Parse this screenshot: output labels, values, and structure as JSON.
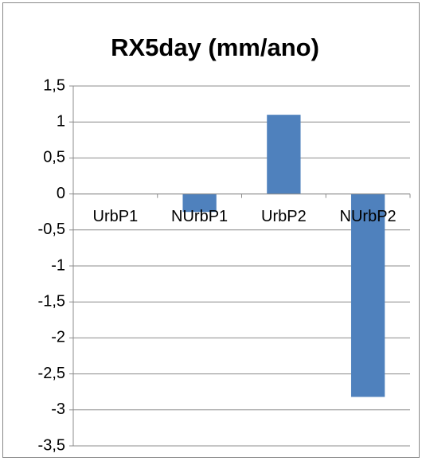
{
  "chart_data": {
    "type": "bar",
    "title": "RX5day (mm/ano)",
    "categories": [
      "UrbP1",
      "NUrbP1",
      "UrbP2",
      "NUrbP2"
    ],
    "values": [
      0,
      -0.25,
      1.1,
      -2.82
    ],
    "color": "#4f81bd",
    "ylim": [
      -3.5,
      1.5
    ],
    "yticks": [
      {
        "value": -3.5,
        "label": "-3,5"
      },
      -3,
      {
        "value": -2.5,
        "label": "-2,5"
      },
      -2,
      {
        "value": -1.5,
        "label": "-1,5"
      },
      -1,
      {
        "value": -0.5,
        "label": "-0,5"
      },
      0,
      {
        "value": 0.5,
        "label": "0,5"
      },
      1,
      {
        "value": 1.5,
        "label": "1,5"
      }
    ],
    "grid": true
  }
}
